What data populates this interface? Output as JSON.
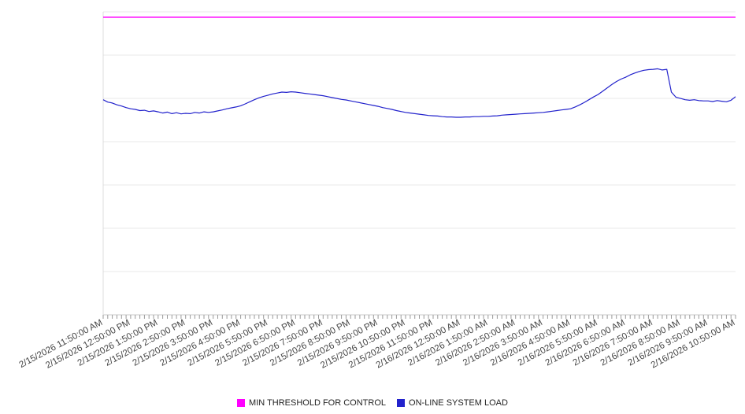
{
  "page": {
    "background": "#ffffff"
  },
  "chart_data": {
    "type": "line",
    "title": "",
    "legend_position": "bottom",
    "y_axis": {
      "labels_shown": false,
      "ylim": [
        0,
        100
      ],
      "gridline_divisions": 7,
      "grid": true
    },
    "x_axis": {
      "label_rotation_deg": -28,
      "minor_tick_interval_minutes": 10,
      "tick_labels": [
        "2/15/2026 11:50:00 AM",
        "2/15/2026 12:50:00 PM",
        "2/15/2026 1:50:00 PM",
        "2/15/2026 2:50:00 PM",
        "2/15/2026 3:50:00 PM",
        "2/15/2026 4:50:00 PM",
        "2/15/2026 5:50:00 PM",
        "2/15/2026 6:50:00 PM",
        "2/15/2026 7:50:00 PM",
        "2/15/2026 8:50:00 PM",
        "2/15/2026 9:50:00 PM",
        "2/15/2026 10:50:00 PM",
        "2/15/2026 11:50:00 PM",
        "2/16/2026 12:50:00 AM",
        "2/16/2026 1:50:00 AM",
        "2/16/2026 2:50:00 AM",
        "2/16/2026 3:50:00 AM",
        "2/16/2026 4:50:00 AM",
        "2/16/2026 5:50:00 AM",
        "2/16/2026 6:50:00 AM",
        "2/16/2026 7:50:00 AM",
        "2/16/2026 8:50:00 AM",
        "2/16/2026 9:50:00 AM",
        "2/16/2026 10:50:00 AM"
      ]
    },
    "series": [
      {
        "name": "MIN THRESHOLD FOR CONTROL",
        "color": "#ff00ff",
        "style": "threshold-line",
        "value": 98.2
      },
      {
        "name": "ON-LINE SYSTEM LOAD",
        "color": "#2222cc",
        "start": "2/15/2026 11:50:00 AM",
        "end": "2/16/2026 10:50:00 AM",
        "interval_minutes": 10,
        "values": [
          71.0,
          70.2,
          69.9,
          69.3,
          68.9,
          68.4,
          68.0,
          67.8,
          67.4,
          67.5,
          67.1,
          67.3,
          67.0,
          66.6,
          66.9,
          66.4,
          66.7,
          66.3,
          66.5,
          66.4,
          66.8,
          66.6,
          67.0,
          66.8,
          67.0,
          67.3,
          67.6,
          68.0,
          68.3,
          68.6,
          69.0,
          69.6,
          70.3,
          71.0,
          71.6,
          72.1,
          72.5,
          72.9,
          73.2,
          73.5,
          73.4,
          73.6,
          73.5,
          73.3,
          73.1,
          72.9,
          72.7,
          72.5,
          72.3,
          72.0,
          71.7,
          71.4,
          71.1,
          70.9,
          70.6,
          70.3,
          70.0,
          69.7,
          69.4,
          69.1,
          68.8,
          68.4,
          68.1,
          67.8,
          67.4,
          67.1,
          66.8,
          66.6,
          66.4,
          66.2,
          66.0,
          65.8,
          65.7,
          65.6,
          65.4,
          65.3,
          65.3,
          65.2,
          65.2,
          65.3,
          65.3,
          65.4,
          65.4,
          65.5,
          65.5,
          65.6,
          65.7,
          65.9,
          66.0,
          66.1,
          66.2,
          66.3,
          66.4,
          66.5,
          66.6,
          66.7,
          66.8,
          67.0,
          67.2,
          67.4,
          67.6,
          67.8,
          68.0,
          68.6,
          69.3,
          70.1,
          71.0,
          71.9,
          72.7,
          73.8,
          74.9,
          76.0,
          77.0,
          77.8,
          78.4,
          79.2,
          79.8,
          80.3,
          80.7,
          80.9,
          81.0,
          81.2,
          80.8,
          81.0,
          73.5,
          71.8,
          71.4,
          71.0,
          70.8,
          71.0,
          70.7,
          70.6,
          70.6,
          70.4,
          70.7,
          70.5,
          70.3,
          70.8,
          72.0
        ]
      }
    ]
  }
}
